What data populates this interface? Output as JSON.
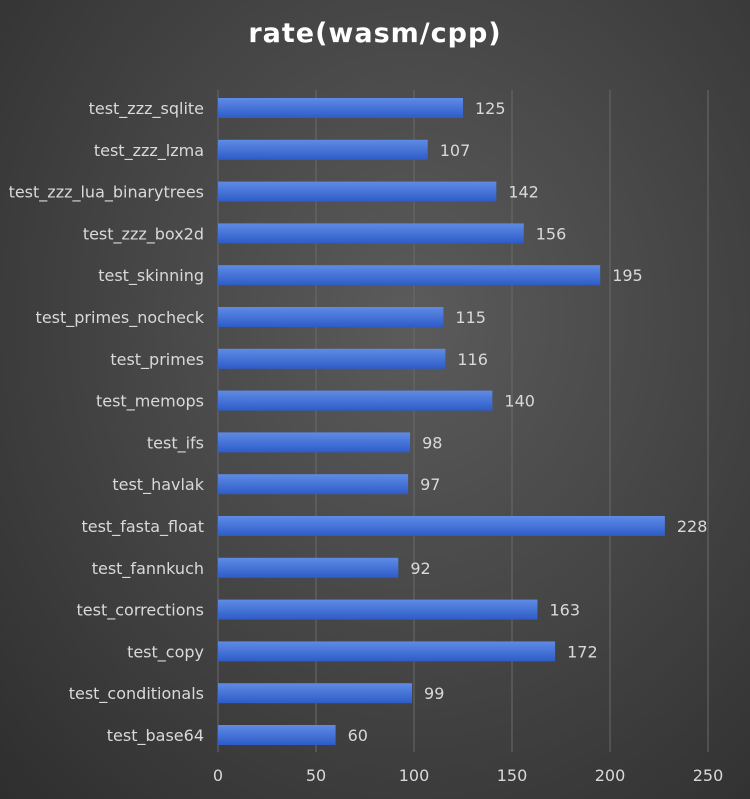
{
  "chart_data": {
    "type": "bar",
    "orientation": "horizontal",
    "title": "rate(wasm/cpp)",
    "categories": [
      "test_zzz_sqlite",
      "test_zzz_lzma",
      "test_zzz_lua_binarytrees",
      "test_zzz_box2d",
      "test_skinning",
      "test_primes_nocheck",
      "test_primes",
      "test_memops",
      "test_ifs",
      "test_havlak",
      "test_fasta_float",
      "test_fannkuch",
      "test_corrections",
      "test_copy",
      "test_conditionals",
      "test_base64"
    ],
    "values": [
      125,
      107,
      142,
      156,
      195,
      115,
      116,
      140,
      98,
      97,
      228,
      92,
      163,
      172,
      99,
      60
    ],
    "xlim": [
      0,
      250
    ],
    "xticks": [
      0,
      50,
      100,
      150,
      200,
      250
    ],
    "grid": true,
    "data_labels": true,
    "colors": {
      "bar_top": "#5f8be6",
      "bar_bottom": "#2e5cc7",
      "grid": "#6a6a6a",
      "text": "#d9d9d9",
      "title": "#ffffff"
    }
  }
}
